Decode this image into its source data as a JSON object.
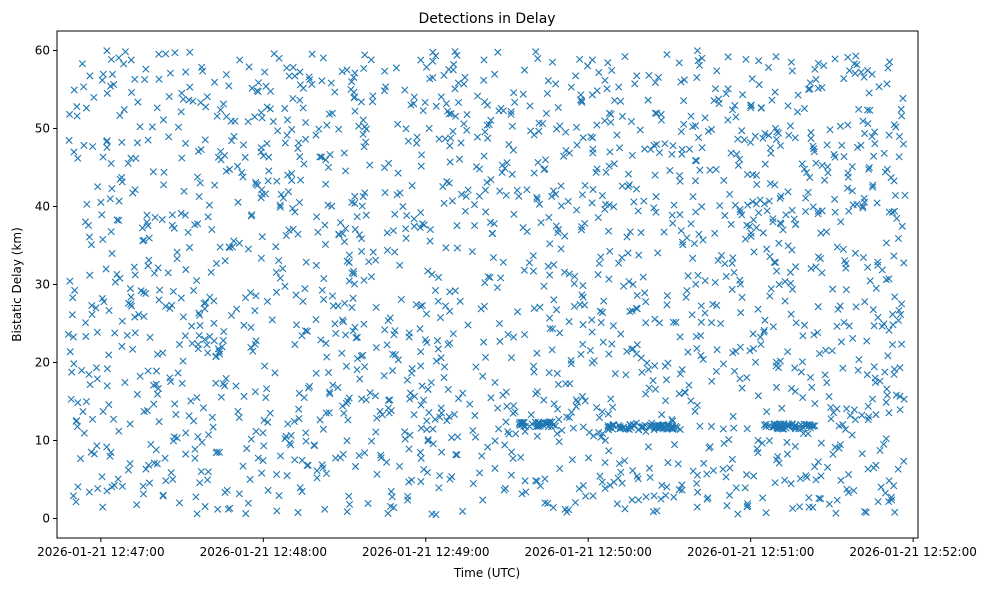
{
  "chart_data": {
    "type": "scatter",
    "title": "Detections in Delay",
    "xlabel": "Time (UTC)",
    "ylabel": "Bistatic Delay (km)",
    "x_ticks": [
      "2026-01-21 12:47:00",
      "2026-01-21 12:48:00",
      "2026-01-21 12:49:00",
      "2026-01-21 12:50:00",
      "2026-01-21 12:51:00",
      "2026-01-21 12:52:00"
    ],
    "x_tick_minutes": [
      0,
      1,
      2,
      3,
      4,
      5
    ],
    "y_ticks": [
      0,
      10,
      20,
      30,
      40,
      50,
      60
    ],
    "xlim_minutes_from_12_47": [
      -0.27,
      5.03
    ],
    "ylim": [
      -2.5,
      62.5
    ],
    "marker": "x",
    "color": "#1f77b4",
    "grid": false,
    "x_range_minutes": [
      -0.2,
      4.95
    ],
    "y_range": [
      0.5,
      60
    ],
    "clusters": [
      {
        "x_start": 2.57,
        "x_end": 2.8,
        "y": 12.1
      },
      {
        "x_start": 3.12,
        "x_end": 3.55,
        "y": 11.7
      },
      {
        "x_start": 4.08,
        "x_end": 4.4,
        "y": 11.8
      }
    ]
  }
}
